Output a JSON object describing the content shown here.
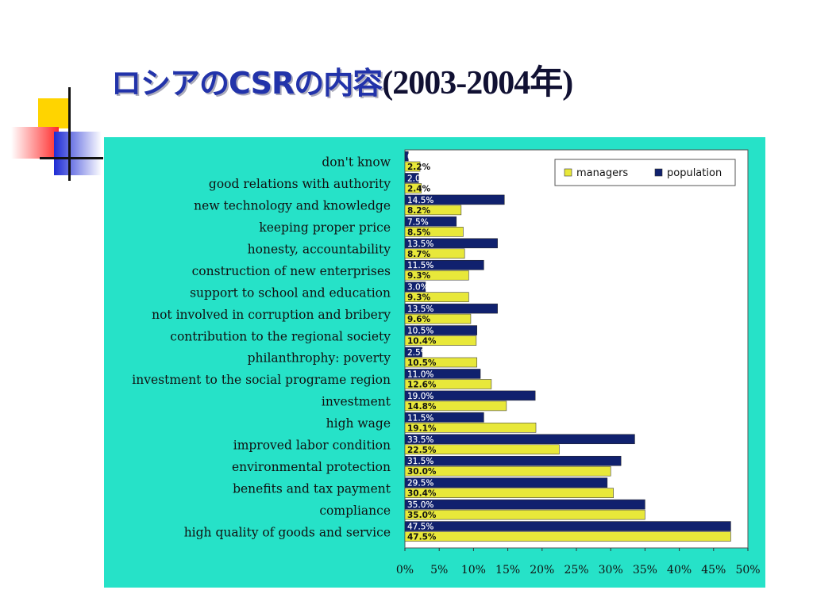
{
  "slide": {
    "title_jp": "ロシアのCSRの内容",
    "title_years": "(2003-2004年)"
  },
  "colors": {
    "background": "#ffffff",
    "panel": "#26e2c8",
    "managers": "#e8e83a",
    "population": "#10216e",
    "title": "#2233aa"
  },
  "chart_data": {
    "type": "bar",
    "orientation": "horizontal",
    "categories": [
      "don't know",
      "good relations with authority",
      "new technology and knowledge",
      "keeping proper price",
      "honesty, accountability",
      "construction of new enterprises",
      "support to school and education",
      "not involved in corruption and bribery",
      "contribution to the regional society",
      "philanthrophy: poverty",
      "investment to the social programe region",
      "investment",
      "high wage",
      "improved labor condition",
      "environmental protection",
      "benefits and tax payment",
      "compliance",
      "high quality of goods and service"
    ],
    "series": [
      {
        "name": "population",
        "values": [
          0.5,
          2.0,
          14.5,
          7.5,
          13.5,
          11.5,
          3.0,
          13.5,
          10.5,
          2.5,
          11.0,
          19.0,
          11.5,
          33.5,
          31.5,
          29.5,
          35.0,
          47.5
        ],
        "labels": [
          "0.5%",
          "2.0%",
          "14.5%",
          "7.5%",
          "13.5%",
          "11.5%",
          "3.0%",
          "13.5%",
          "10.5%",
          "2.5%",
          "11.0%",
          "19.0%",
          "11.5%",
          "33.5%",
          "31.5%",
          "29.5%",
          "35.0%",
          "47.5%"
        ]
      },
      {
        "name": "managers",
        "values": [
          2.2,
          2.4,
          8.2,
          8.5,
          8.7,
          9.3,
          9.3,
          9.6,
          10.4,
          10.5,
          12.6,
          14.8,
          19.1,
          22.5,
          30.0,
          30.4,
          35.0,
          47.5
        ],
        "labels": [
          "2.2%",
          "2.4%",
          "8.2%",
          "8.5%",
          "8.7%",
          "9.3%",
          "9.3%",
          "9.6%",
          "10.4%",
          "10.5%",
          "12.6%",
          "14.8%",
          "19.1%",
          "22.5%",
          "30.0%",
          "30.4%",
          "35.0%",
          "47.5%"
        ]
      }
    ],
    "xlim": [
      0,
      50
    ],
    "xticks": [
      "0%",
      "5%",
      "10%",
      "15%",
      "20%",
      "25%",
      "30%",
      "35%",
      "40%",
      "45%",
      "50%"
    ],
    "legend": {
      "position": "top-right",
      "entries": [
        "managers",
        "population"
      ]
    },
    "grid": false
  }
}
